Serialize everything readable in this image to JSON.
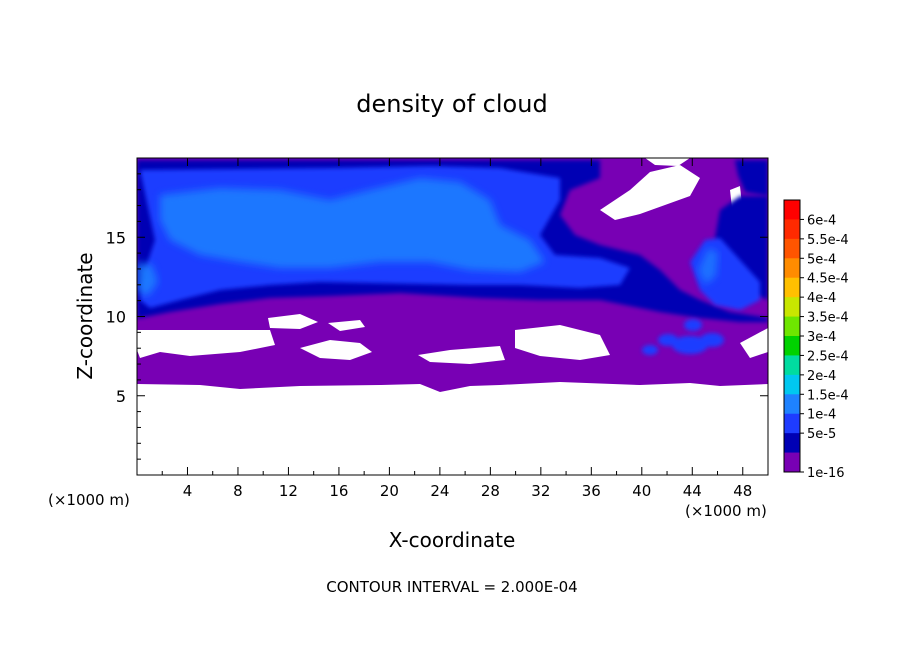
{
  "chart_data": {
    "type": "heatmap",
    "title": "density of cloud",
    "xlabel": "X-coordinate",
    "ylabel": "Z-coordinate",
    "x_unit_left": "(×1000 m)",
    "x_unit_right": "(×1000 m)",
    "xlim": [
      0,
      50
    ],
    "ylim": [
      0,
      20
    ],
    "xticks": [
      4,
      8,
      12,
      16,
      20,
      24,
      28,
      32,
      36,
      40,
      44,
      48
    ],
    "yticks": [
      5,
      10,
      15
    ],
    "footer": "CONTOUR INTERVAL = 2.000E-04",
    "colorbar": {
      "labels": [
        "6e-4",
        "5.5e-4",
        "5e-4",
        "4.5e-4",
        "4e-4",
        "3.5e-4",
        "3e-4",
        "2.5e-4",
        "2e-4",
        "1.5e-4",
        "1e-4",
        "5e-5",
        "1e-16"
      ],
      "colors": [
        "#ff0000",
        "#ff2a00",
        "#ff5500",
        "#ff8c00",
        "#ffc000",
        "#c8e600",
        "#6ee600",
        "#00d200",
        "#00dca0",
        "#00c8f0",
        "#1e82ff",
        "#1e3cff",
        "#0000b4",
        "#7800b4"
      ]
    },
    "bands": [
      {
        "level": "1e-16",
        "color": "#7800b4",
        "region": "z 5.5–19.8 km, full x range"
      },
      {
        "level": "5e-5",
        "color": "#0000b4",
        "region": "z 10–19.8 km"
      },
      {
        "level": "1e-4",
        "color": "#1e3cff",
        "region": "upper cloud layer x 0–34 km"
      },
      {
        "level": "1.5e-4",
        "color": "#1e82ff",
        "region": "core near x 17–26 km, z 13–18 km"
      }
    ]
  }
}
